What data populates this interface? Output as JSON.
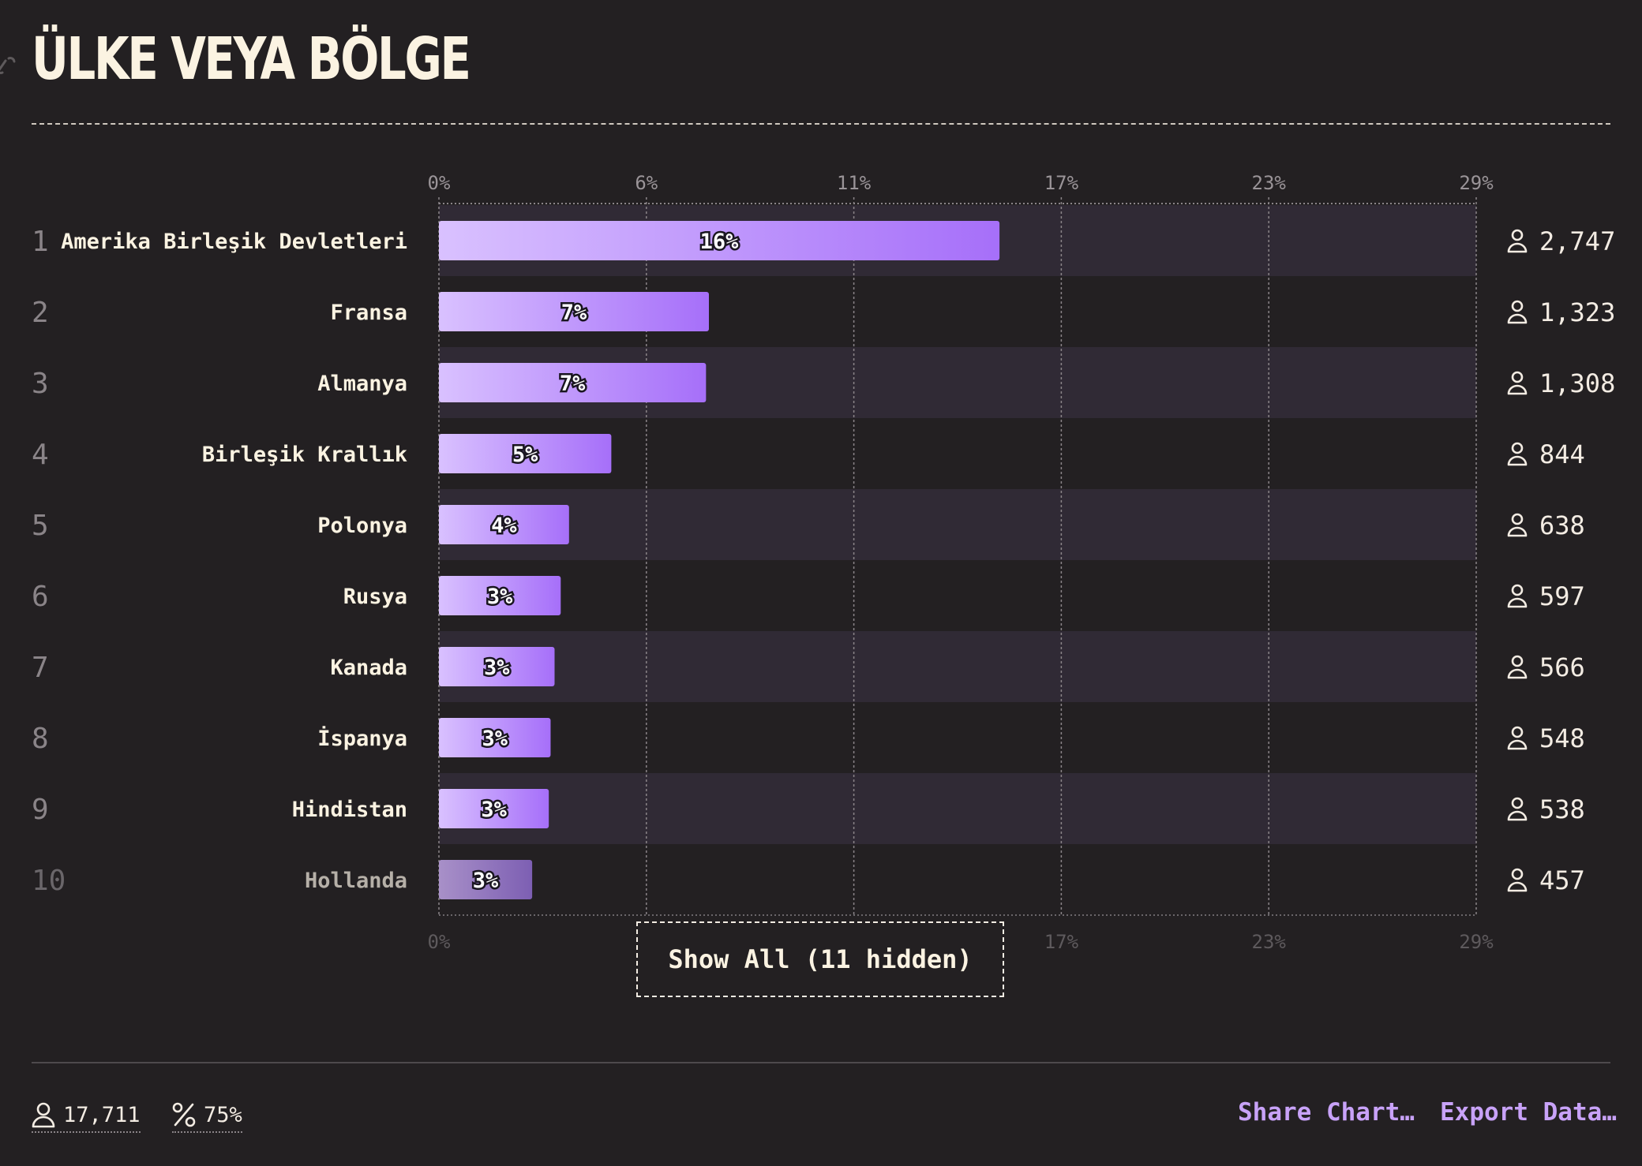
{
  "page": {
    "title": "ÜLKE VEYA BÖLGE",
    "show_all_label": "Show All (11 hidden)",
    "footer": {
      "total_label": "17,711",
      "percent_label": "75%",
      "share_label": "Share Chart…",
      "export_label": "Export Data…"
    }
  },
  "colors": {
    "background": "#232022",
    "stripe": "#302a35",
    "bar_start": "#d9c1ff",
    "bar_end": "#a66ff9",
    "text": "#f3ece3",
    "muted": "#8a8488",
    "accent": "#c8a2f8"
  },
  "icons": {
    "count": "user-icon",
    "percent": "percent-icon",
    "link": "link-icon"
  },
  "chart_data": {
    "type": "bar",
    "orientation": "horizontal",
    "categories": [
      "Amerika Birleşik Devletleri",
      "Fransa",
      "Almanya",
      "Birleşik Krallık",
      "Polonya",
      "Rusya",
      "Kanada",
      "İspanya",
      "Hindistan",
      "Hollanda"
    ],
    "ranks": [
      "1",
      "2",
      "3",
      "4",
      "5",
      "6",
      "7",
      "8",
      "9",
      "10"
    ],
    "values": [
      15.51,
      7.47,
      7.39,
      4.77,
      3.6,
      3.37,
      3.2,
      3.09,
      3.04,
      2.58
    ],
    "value_labels": [
      "16%",
      "7%",
      "7%",
      "5%",
      "4%",
      "3%",
      "3%",
      "3%",
      "3%",
      "3%"
    ],
    "counts": [
      "2,747",
      "1,323",
      "1,308",
      "844",
      "638",
      "597",
      "566",
      "548",
      "538",
      "457"
    ],
    "tick_values": [
      0,
      5.74,
      11.48,
      17.22,
      22.96,
      28.7
    ],
    "ticks": [
      "0%",
      "6%",
      "11%",
      "17%",
      "23%",
      "29%"
    ],
    "xlim": [
      0,
      28.7
    ],
    "grid": true
  }
}
